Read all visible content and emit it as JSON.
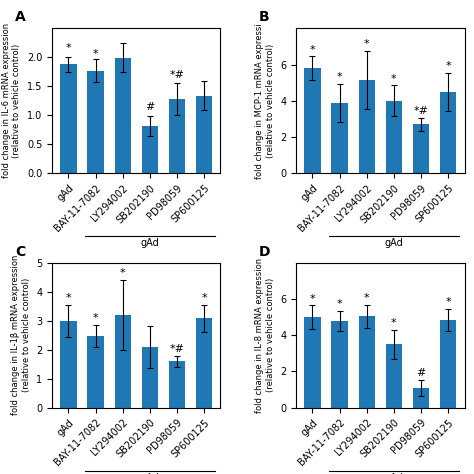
{
  "chart_data": [
    {
      "type": "bar",
      "title": "A",
      "ylabel": "fold change in IL-6 mRNA expression\n(relative to vehicle control)",
      "categories": [
        "gAd",
        "BAY-11-7082",
        "LY294002",
        "SB202190",
        "PD98059",
        "SP600125"
      ],
      "values": [
        1.88,
        1.77,
        1.99,
        0.82,
        1.28,
        1.34
      ],
      "errors": [
        0.13,
        0.2,
        0.25,
        0.17,
        0.27,
        0.25
      ],
      "ylim": [
        0,
        2.5
      ],
      "yticks": [
        {
          "value": 0,
          "label": "0.0"
        },
        0.5,
        {
          "value": 1,
          "label": "1.0"
        },
        1.5,
        {
          "value": 2,
          "label": "2.0"
        }
      ],
      "annotations": [
        {
          "category": "gAd",
          "y": 2.08,
          "text": "*"
        },
        {
          "category": "BAY-11-7082",
          "y": 1.97,
          "text": "*"
        },
        {
          "category": "SB202190",
          "y": 1.06,
          "text": "#"
        },
        {
          "category": "PD98059",
          "y": 1.61,
          "text": "*#"
        },
        {
          "text": "gAd",
          "categories": [
            "BAY-11-7082",
            "LY294002",
            "SB202190",
            "PD98059",
            "SP600125"
          ]
        }
      ]
    },
    {
      "type": "bar",
      "title": "B",
      "ylabel": "fold change in MCP-1 mRNA expressi\n(relative to vehicle control)",
      "categories": [
        "gAd",
        "BAY-11-7082",
        "LY294002",
        "SB202190",
        "PD98059",
        "SP600125"
      ],
      "values": [
        5.8,
        3.9,
        5.15,
        4.0,
        2.7,
        4.5
      ],
      "errors": [
        0.65,
        1.05,
        1.6,
        0.85,
        0.35,
        1.05
      ],
      "ylim": [
        0,
        8
      ],
      "yticks": [
        0,
        2,
        4,
        6
      ],
      "annotations": [
        {
          "category": "gAd",
          "y": 6.55,
          "text": "*"
        },
        {
          "category": "BAY-11-7082",
          "y": 5.05,
          "text": "*"
        },
        {
          "category": "LY294002",
          "y": 6.85,
          "text": "*"
        },
        {
          "category": "SB202190",
          "y": 4.95,
          "text": "*"
        },
        {
          "category": "PD98059",
          "y": 3.15,
          "text": "*#"
        },
        {
          "category": "SP600125",
          "y": 5.65,
          "text": "*"
        },
        {
          "text": "gAd",
          "categories": [
            "BAY-11-7082",
            "LY294002",
            "SB202190",
            "PD98059",
            "SP600125"
          ]
        }
      ]
    },
    {
      "type": "bar",
      "title": "C",
      "ylabel": "fold change in IL-1β mRNA expression\n(relative to vehicle control)",
      "categories": [
        "gAd",
        "BAY-11-7082",
        "LY294002",
        "SB202190",
        "PD98059",
        "SP600125"
      ],
      "values": [
        3.0,
        2.47,
        3.2,
        2.1,
        1.6,
        3.08
      ],
      "errors": [
        0.55,
        0.38,
        1.2,
        0.72,
        0.18,
        0.48
      ],
      "ylim": [
        0,
        5
      ],
      "yticks": [
        0,
        1,
        2,
        3,
        4,
        5
      ],
      "annotations": [
        {
          "category": "gAd",
          "y": 3.62,
          "text": "*"
        },
        {
          "category": "BAY-11-7082",
          "y": 2.92,
          "text": "*"
        },
        {
          "category": "LY294002",
          "y": 4.48,
          "text": "*"
        },
        {
          "category": "PD98059",
          "y": 1.85,
          "text": "*#"
        },
        {
          "category": "SP600125",
          "y": 3.63,
          "text": "*"
        },
        {
          "text": "gAd",
          "categories": [
            "BAY-11-7082",
            "LY294002",
            "SB202190",
            "PD98059",
            "SP600125"
          ]
        }
      ]
    },
    {
      "type": "bar",
      "title": "D",
      "ylabel": "fold change in IL-8 mRNA expression\n(relative to vehicle control)",
      "categories": [
        "gAd",
        "BAY-11-7082",
        "LY294002",
        "SB202190",
        "PD98059",
        "SP600125"
      ],
      "values": [
        5.0,
        4.8,
        5.05,
        3.5,
        1.1,
        4.85
      ],
      "errors": [
        0.65,
        0.55,
        0.65,
        0.8,
        0.45,
        0.6
      ],
      "ylim": [
        0,
        8
      ],
      "yticks": [
        0,
        2,
        4,
        6
      ],
      "annotations": [
        {
          "category": "gAd",
          "y": 5.75,
          "text": "*"
        },
        {
          "category": "BAY-11-7082",
          "y": 5.45,
          "text": "*"
        },
        {
          "category": "LY294002",
          "y": 5.8,
          "text": "*"
        },
        {
          "category": "SB202190",
          "y": 4.4,
          "text": "*"
        },
        {
          "category": "PD98059",
          "y": 1.65,
          "text": "#"
        },
        {
          "category": "SP600125",
          "y": 5.55,
          "text": "*"
        },
        {
          "text": "gAd",
          "categories": [
            "BAY-11-7082",
            "LY294002",
            "SB202190",
            "PD98059",
            "SP600125"
          ]
        }
      ]
    }
  ]
}
